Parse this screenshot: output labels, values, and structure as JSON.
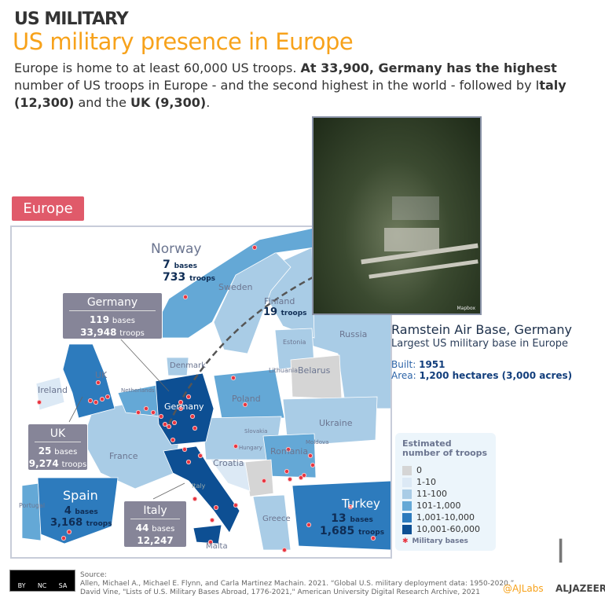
{
  "header": {
    "kicker": "US MILITARY",
    "title": "US military presence in Europe",
    "intro": {
      "p1": "Europe is home to at least 60,000 US troops. ",
      "b1": "At 33,900, Germany has the highest",
      "p2": " number of US troops in Europe - and the second highest in the world -  followed by I",
      "b2": "taly (12,300)",
      "p3": " and the ",
      "b3": "UK (9,300)",
      "p4": "."
    }
  },
  "region_badge": "Europe",
  "photo": {
    "credit": "Mapbox"
  },
  "ramstein": {
    "title": "Ramstein Air Base, Germany",
    "subtitle": "Largest US military base in Europe",
    "built_label": "Built:",
    "built": "1951",
    "area_label": "Area:",
    "area": "1,200 hectares (3,000 acres)"
  },
  "map": {
    "labels": {
      "sweden": "Sweden",
      "russia": "Russia",
      "estonia": "Estonia",
      "lithuania": "Lithuania",
      "belarus": "Belarus",
      "denmark": "Denmark",
      "poland": "Poland",
      "ukraine": "Ukraine",
      "moldova": "Moldova",
      "romania": "Romania",
      "slovakia": "Slovakia",
      "hungary": "Hungary",
      "croatia": "Croatia",
      "greece": "Greece",
      "france": "France",
      "ireland": "Ireland",
      "uk": "UK",
      "netherlands": "Netherlands",
      "germany": "Germany",
      "italy": "Italy",
      "portugal": "Portugal",
      "malta": "Malta"
    },
    "norway": {
      "name": "Norway",
      "bases": "7",
      "troops": "733"
    },
    "finland": {
      "name": "Finland",
      "troops": "19"
    },
    "spain": {
      "name": "Spain",
      "bases": "4",
      "troops": "3,168"
    },
    "turkey": {
      "name": "Turkey",
      "bases": "13",
      "troops": "1,685"
    },
    "units": {
      "bases": "bases",
      "troops": "troops"
    },
    "callouts": {
      "germany": {
        "name": "Germany",
        "bases": "119",
        "troops": "33,948"
      },
      "uk": {
        "name": "UK",
        "bases": "25",
        "troops": "9,274"
      },
      "italy": {
        "name": "Italy",
        "bases": "44",
        "troops": "12,247"
      }
    }
  },
  "legend": {
    "title": "Estimated number of troops",
    "items": [
      {
        "label": "0",
        "color": "#d5d5d5"
      },
      {
        "label": "1-10",
        "color": "#dce9f5"
      },
      {
        "label": "11-100",
        "color": "#a9cce6"
      },
      {
        "label": "101-1,000",
        "color": "#64a8d6"
      },
      {
        "label": "1,001-10,000",
        "color": "#2d7bbd"
      },
      {
        "label": "10,001-60,000",
        "color": "#0d4f93"
      }
    ],
    "bases_label": "Military bases",
    "bases_color": "#e8343f"
  },
  "footer": {
    "source_label": "Source:",
    "source1": "Allen, Michael A., Michael E. Flynn, and Carla Martinez Machain. 2021. “Global U.S. military deployment data: 1950-2020.”",
    "source2": "David Vine, \"Lists of U.S. Military Bases Abroad, 1776-2021,\" American University Digital Research Archive, 2021",
    "license": [
      "BY",
      "NC",
      "SA"
    ],
    "handle": "@AJLabs",
    "brand": "ALJAZEERA"
  }
}
